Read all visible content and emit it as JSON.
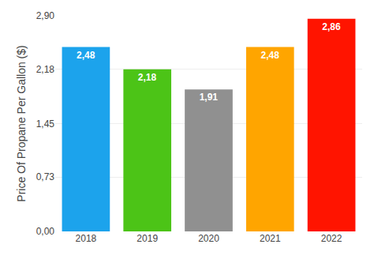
{
  "chart_data": {
    "type": "bar",
    "categories": [
      "2018",
      "2019",
      "2020",
      "2021",
      "2022"
    ],
    "values": [
      2.48,
      2.18,
      1.91,
      2.48,
      2.86
    ],
    "value_labels": [
      "2,48",
      "2,18",
      "1,91",
      "2,48",
      "2,86"
    ],
    "data_labels": true,
    "colors": [
      "#1CA3EC",
      "#4CC417",
      "#909090",
      "#FFA500",
      "#FF1400"
    ],
    "ylabel": "Price Of Propane Per Gallon ($)",
    "ylim": [
      0.0,
      2.9
    ],
    "yticks": [
      {
        "value": 0.0,
        "label": "0,00"
      },
      {
        "value": 0.73,
        "label": "0,73"
      },
      {
        "value": 1.45,
        "label": "1,45"
      },
      {
        "value": 2.18,
        "label": "2,18"
      },
      {
        "value": 2.9,
        "label": "2,90"
      }
    ],
    "grid": true
  }
}
